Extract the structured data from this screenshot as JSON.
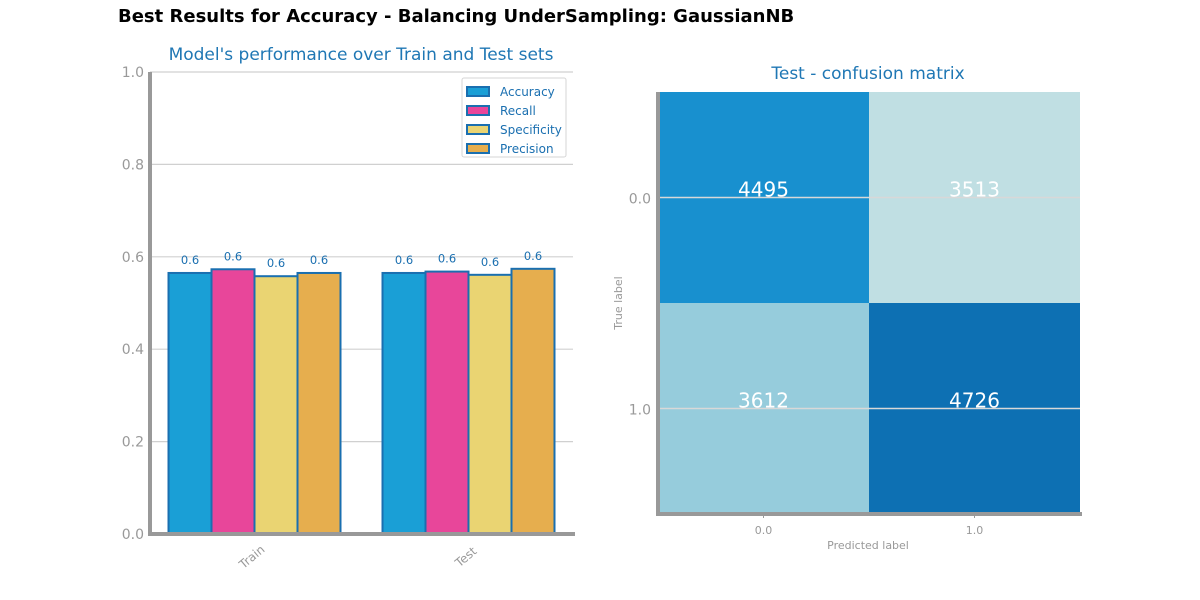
{
  "suptitle": "Best Results for Accuracy - Balancing UnderSampling: GaussianNB",
  "colors": {
    "title": "#1f77b4",
    "accent": "#1a6fb0",
    "axis": "#999999",
    "grid": "#d0d0d0"
  },
  "chart_data": [
    {
      "type": "bar",
      "title": "Model's performance over Train and Test sets",
      "categories": [
        "Train",
        "Test"
      ],
      "ylim": [
        0,
        1
      ],
      "yticks": [
        "0.0",
        "0.2",
        "0.4",
        "0.6",
        "0.8",
        "1.0"
      ],
      "grid": true,
      "legend": "top-right",
      "series": [
        {
          "name": "Accuracy",
          "color": "#1a9fd6",
          "values": [
            0.565,
            0.565
          ],
          "labels": [
            "0.6",
            "0.6"
          ]
        },
        {
          "name": "Recall",
          "color": "#e8469a",
          "values": [
            0.573,
            0.568
          ],
          "labels": [
            "0.6",
            "0.6"
          ]
        },
        {
          "name": "Specificity",
          "color": "#ead472",
          "values": [
            0.558,
            0.561
          ],
          "labels": [
            "0.6",
            "0.6"
          ]
        },
        {
          "name": "Precision",
          "color": "#e6ae4e",
          "values": [
            0.565,
            0.574
          ],
          "labels": [
            "0.6",
            "0.6"
          ]
        }
      ]
    },
    {
      "type": "heatmap",
      "title": "Test - confusion matrix",
      "xlabel": "Predicted label",
      "ylabel": "True label",
      "xticks": [
        "0.0",
        "1.0"
      ],
      "yticks": [
        "0.0",
        "1.0"
      ],
      "values": [
        [
          4495,
          3513
        ],
        [
          3612,
          4726
        ]
      ],
      "cell_colors": [
        [
          "#1890cf",
          "#c0dfe3"
        ],
        [
          "#96ccdc",
          "#0d70b3"
        ]
      ]
    }
  ]
}
